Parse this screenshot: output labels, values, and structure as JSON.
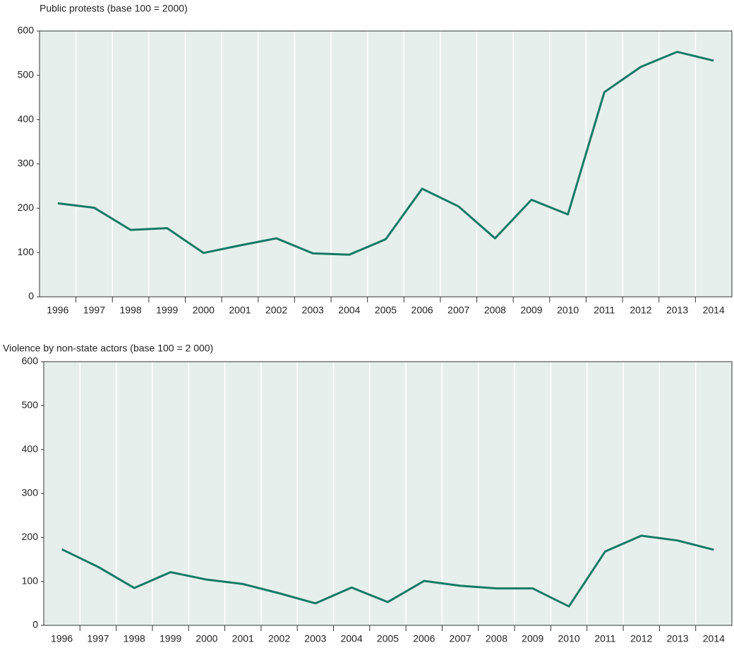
{
  "chart_data": [
    {
      "type": "line",
      "title": "Public protests (base 100 = 2000)",
      "categories": [
        "1996",
        "1997",
        "1998",
        "1999",
        "2000",
        "2001",
        "2002",
        "2003",
        "2004",
        "2005",
        "2006",
        "2007",
        "2008",
        "2009",
        "2010",
        "2011",
        "2012",
        "2013",
        "2014"
      ],
      "values": [
        211,
        201,
        151,
        155,
        99,
        116,
        132,
        98,
        95,
        130,
        244,
        204,
        132,
        219,
        186,
        462,
        519,
        553,
        533
      ],
      "color": "#117a65",
      "ylim": [
        0,
        600
      ],
      "yticks": [
        0,
        100,
        200,
        300,
        400,
        500,
        600
      ],
      "grid": true
    },
    {
      "type": "line",
      "title": "Violence by non-state actors (base 100 = 2 000)",
      "categories": [
        "1996",
        "1997",
        "1998",
        "1999",
        "2000",
        "2001",
        "2002",
        "2003",
        "2004",
        "2005",
        "2006",
        "2007",
        "2008",
        "2009",
        "2010",
        "2011",
        "2012",
        "2013",
        "2014"
      ],
      "values": [
        173,
        133,
        85,
        121,
        104,
        94,
        73,
        50,
        86,
        53,
        101,
        90,
        84,
        84,
        43,
        168,
        204,
        193,
        172
      ],
      "color": "#117a65",
      "ylim": [
        0,
        600
      ],
      "yticks": [
        0,
        100,
        200,
        300,
        400,
        500,
        600
      ],
      "grid": true
    }
  ]
}
